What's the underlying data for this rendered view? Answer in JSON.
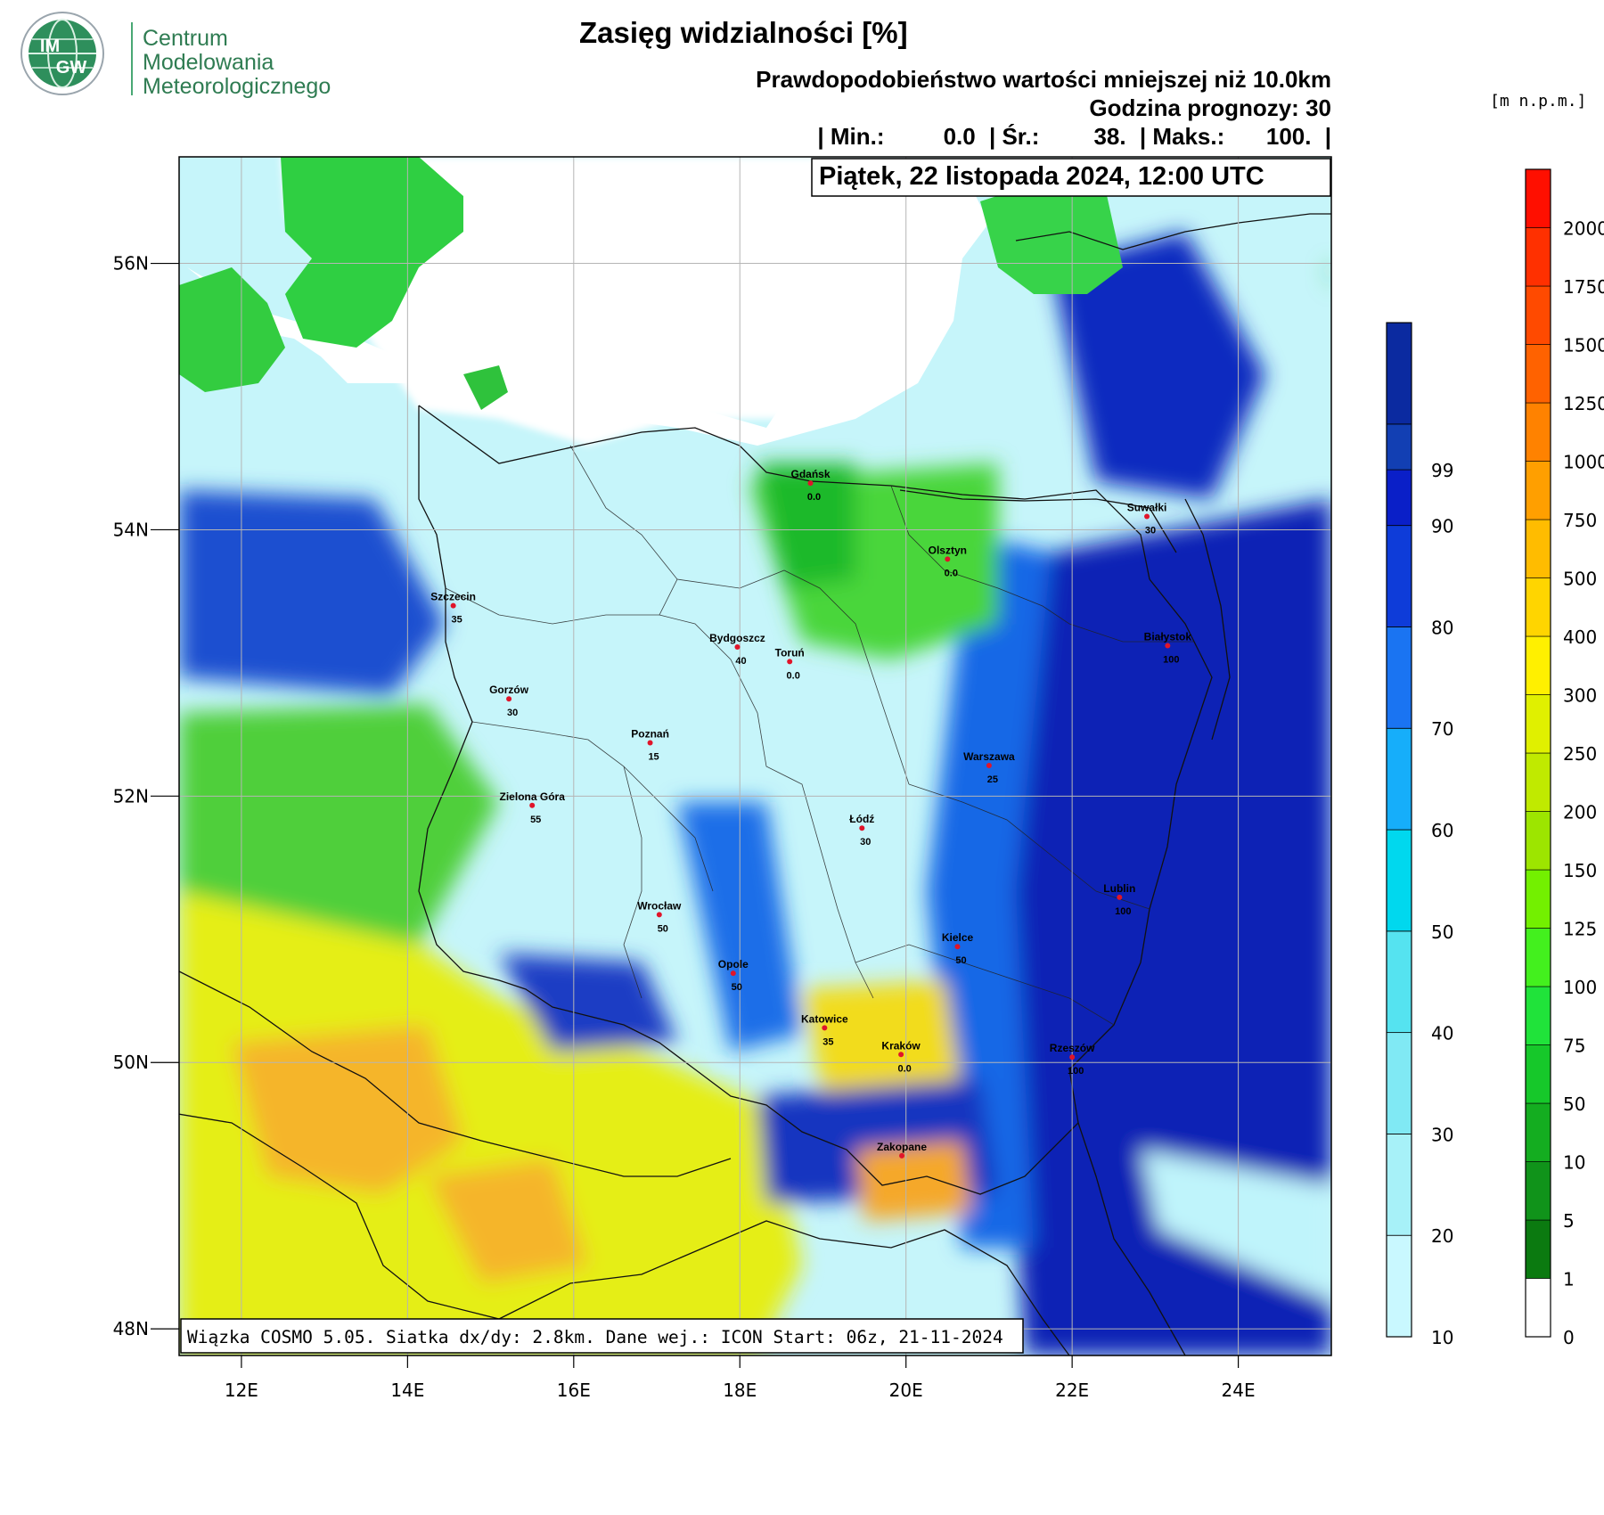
{
  "header": {
    "logo": {
      "badge": "IMGW",
      "badge_line1": "IM",
      "badge_line2": "GW",
      "org_lines": [
        "Centrum",
        "Modelowania",
        "Meteorologicznego"
      ]
    },
    "title": "Zasięg widzialności [%]",
    "subtitle": "Prawdopodobieństwo wartości mniejszej niż 10.0km",
    "forecast_hour_label": "Godzina prognozy: 30",
    "stats": {
      "min_label": "| Min.:",
      "min_value": "0.0",
      "mean_label": "| Śr.:",
      "mean_value": "38.",
      "max_label": "| Maks.:",
      "max_value": "100.",
      "end": "|"
    }
  },
  "map": {
    "date_label": "Piątek, 22 listopada 2024, 12:00 UTC",
    "footer_label": "Wiązka COSMO 5.05. Siatka dx/dy: 2.8km. Dane wej.: ICON Start: 06z, 21-11-2024",
    "extent": {
      "lon_min": 11.25,
      "lon_max": 25.12,
      "lat_min": 47.8,
      "lat_max": 56.8
    },
    "lon_ticks": [
      {
        "value": 12,
        "label": "12E"
      },
      {
        "value": 14,
        "label": "14E"
      },
      {
        "value": 16,
        "label": "16E"
      },
      {
        "value": 18,
        "label": "18E"
      },
      {
        "value": 20,
        "label": "20E"
      },
      {
        "value": 22,
        "label": "22E"
      },
      {
        "value": 24,
        "label": "24E"
      }
    ],
    "lat_ticks": [
      {
        "value": 56,
        "label": "56N"
      },
      {
        "value": 54,
        "label": "54N"
      },
      {
        "value": 52,
        "label": "52N"
      },
      {
        "value": 50,
        "label": "50N"
      },
      {
        "value": 48,
        "label": "48N"
      }
    ],
    "cities": [
      {
        "name": "Gdańsk",
        "value": "0.0",
        "lon": 18.85,
        "lat": 54.35
      },
      {
        "name": "Suwałki",
        "value": "30",
        "lon": 22.9,
        "lat": 54.1
      },
      {
        "name": "Olsztyn",
        "value": "0.0",
        "lon": 20.5,
        "lat": 53.78
      },
      {
        "name": "Szczecin",
        "value": "35",
        "lon": 14.55,
        "lat": 53.43
      },
      {
        "name": "Białystok",
        "value": "100",
        "lon": 23.15,
        "lat": 53.13
      },
      {
        "name": "Bydgoszcz",
        "value": "40",
        "lon": 17.97,
        "lat": 53.12
      },
      {
        "name": "Toruń",
        "value": "0.0",
        "lon": 18.6,
        "lat": 53.01
      },
      {
        "name": "Gorzów",
        "value": "30",
        "lon": 15.22,
        "lat": 52.73
      },
      {
        "name": "Poznań",
        "value": "15",
        "lon": 16.92,
        "lat": 52.4
      },
      {
        "name": "Warszawa",
        "value": "25",
        "lon": 21.0,
        "lat": 52.23
      },
      {
        "name": "Zielona Góra",
        "value": "55",
        "lon": 15.5,
        "lat": 51.93
      },
      {
        "name": "Łódź",
        "value": "30",
        "lon": 19.47,
        "lat": 51.76
      },
      {
        "name": "Lublin",
        "value": "100",
        "lon": 22.57,
        "lat": 51.24
      },
      {
        "name": "Wrocław",
        "value": "50",
        "lon": 17.03,
        "lat": 51.11
      },
      {
        "name": "Kielce",
        "value": "50",
        "lon": 20.62,
        "lat": 50.87
      },
      {
        "name": "Opole",
        "value": "50",
        "lon": 17.92,
        "lat": 50.67
      },
      {
        "name": "Katowice",
        "value": "35",
        "lon": 19.02,
        "lat": 50.26
      },
      {
        "name": "Kraków",
        "value": "0.0",
        "lon": 19.94,
        "lat": 50.06
      },
      {
        "name": "Rzeszów",
        "value": "100",
        "lon": 22.0,
        "lat": 50.04
      },
      {
        "name": "Zakopane",
        "value": "",
        "lon": 19.95,
        "lat": 49.3
      }
    ]
  },
  "legend_probability": {
    "colors": [
      "#c9f8ff",
      "#a7f1f8",
      "#80e9f4",
      "#55e3f0",
      "#00d8ee",
      "#16aefa",
      "#1a74f2",
      "#0e3cd9",
      "#0a1fc8",
      "#123fb3",
      "#0b2aa0"
    ],
    "labels": [
      "10",
      "20",
      "30",
      "40",
      "50",
      "60",
      "70",
      "80",
      "90",
      "99"
    ]
  },
  "legend_elevation": {
    "unit_label": "[m n.p.m.]",
    "colors": [
      "#ffffff",
      "#0b7a10",
      "#10931a",
      "#14ad20",
      "#16c82a",
      "#20e33a",
      "#43f01e",
      "#73f000",
      "#9de500",
      "#c0ea00",
      "#e0f000",
      "#fff000",
      "#ffd500",
      "#ffbc00",
      "#ff9f00",
      "#ff8200",
      "#ff6200",
      "#ff4a00",
      "#ff3000",
      "#ff0f00"
    ],
    "labels": [
      "0",
      "1",
      "5",
      "10",
      "50",
      "75",
      "100",
      "125",
      "150",
      "200",
      "250",
      "300",
      "400",
      "500",
      "750",
      "1000",
      "1250",
      "1500",
      "1750",
      "2000"
    ]
  }
}
